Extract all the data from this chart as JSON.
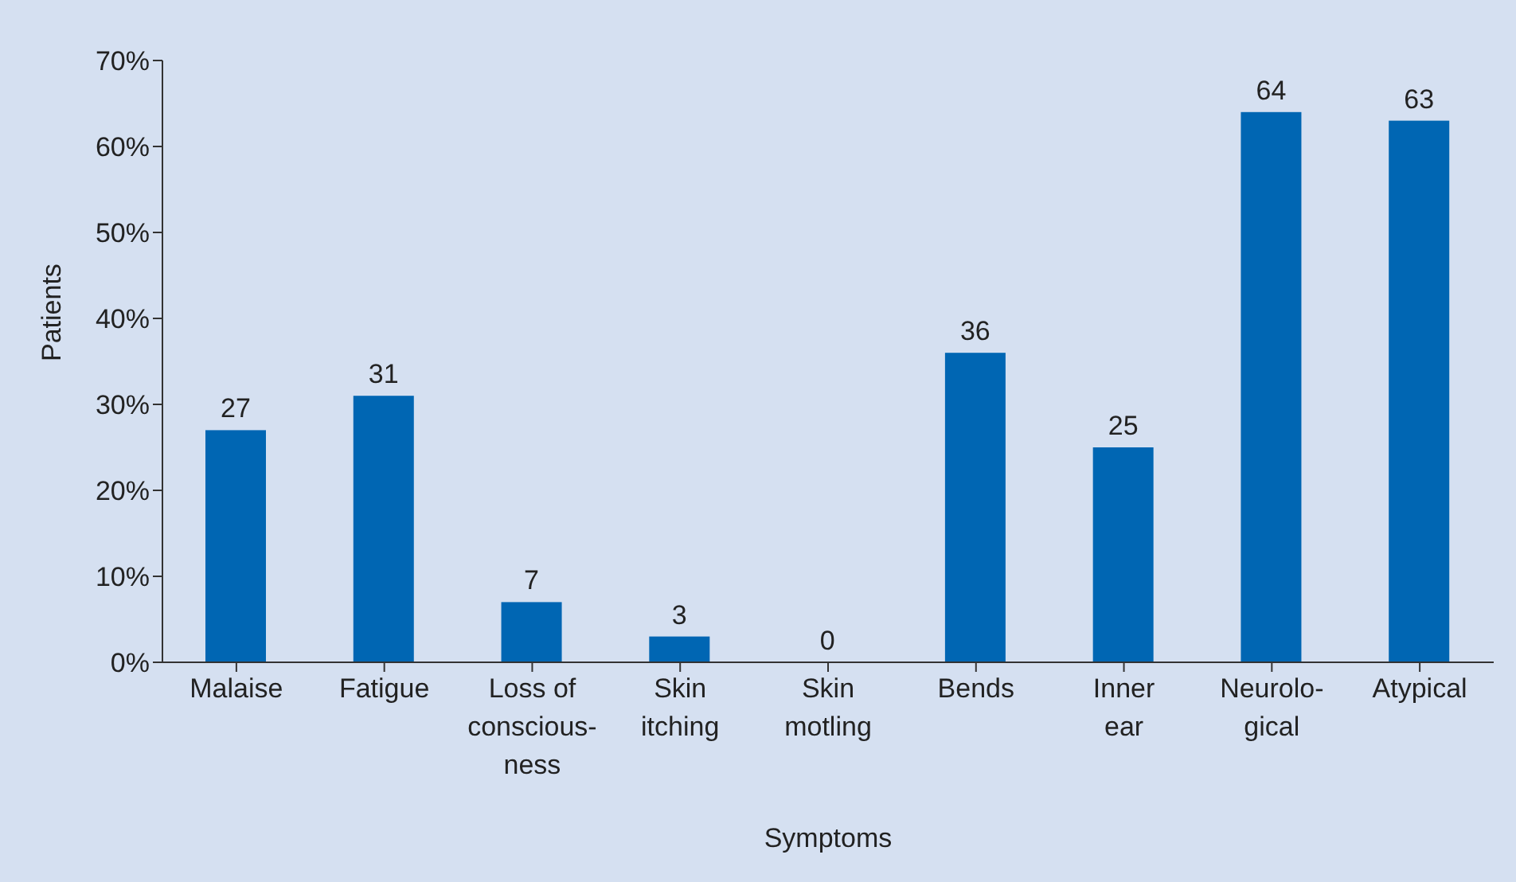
{
  "chart_data": {
    "type": "bar",
    "xlabel": "Symptoms",
    "ylabel": "Patients",
    "categories": [
      "Malaise",
      "Fatigue",
      "Loss of\nconscious-\nness",
      "Skin\nitching",
      "Skin\nmotling",
      "Bends",
      "Inner\near",
      "Neurolo-\ngical",
      "Atypical"
    ],
    "values": [
      27,
      31,
      7,
      3,
      0,
      36,
      25,
      64,
      63
    ],
    "color": "#0066b3",
    "ylim": [
      0,
      70
    ],
    "yticks": [
      {
        "value": 0,
        "label": "0%"
      },
      {
        "value": 10,
        "label": "10%"
      },
      {
        "value": 20,
        "label": "20%"
      },
      {
        "value": 30,
        "label": "30%"
      },
      {
        "value": 40,
        "label": "40%"
      },
      {
        "value": 50,
        "label": "50%"
      },
      {
        "value": 60,
        "label": "60%"
      },
      {
        "value": 70,
        "label": "70%"
      }
    ],
    "data_labels": true,
    "grid": false
  }
}
